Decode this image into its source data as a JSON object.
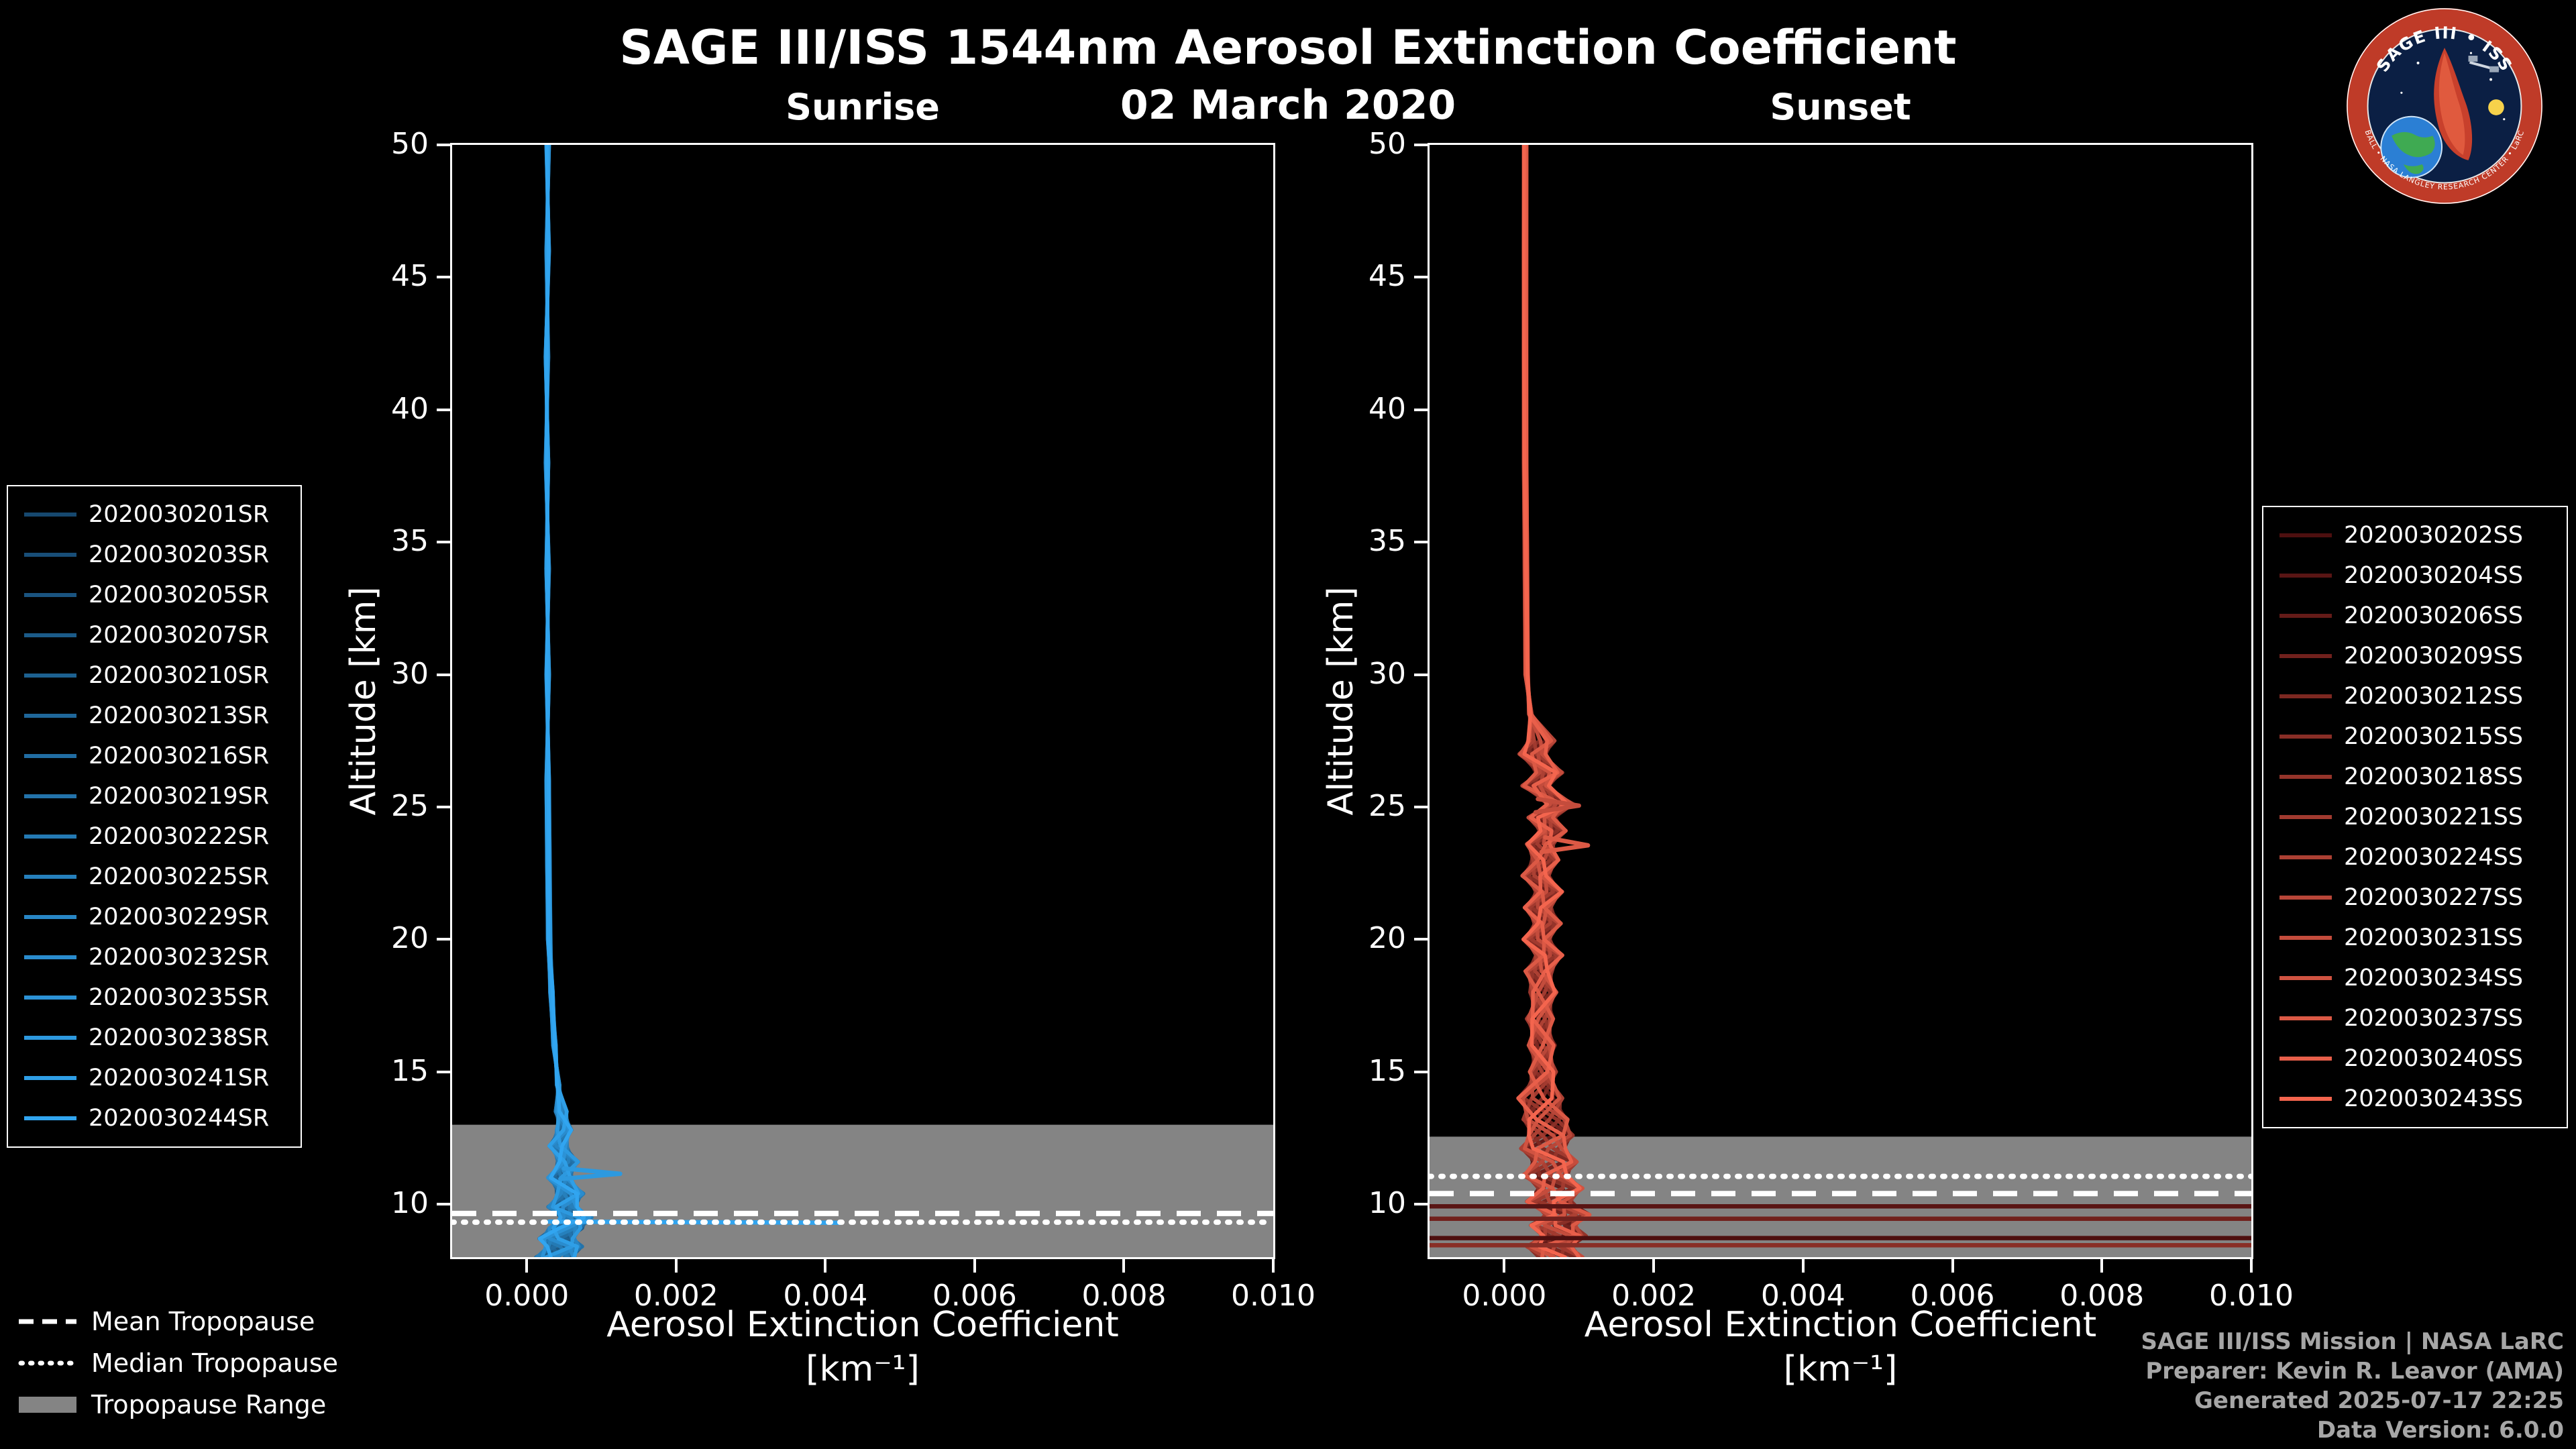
{
  "title": "SAGE III/ISS 1544nm Aerosol Extinction Coefficient",
  "subtitle": "02 March 2020",
  "tropopause_legend": {
    "mean": "Mean Tropopause",
    "median": "Median Tropopause",
    "range": "Tropopause Range"
  },
  "credits": [
    "SAGE III/ISS Mission | NASA LaRC",
    "Preparer: Kevin R. Leavor (AMA)",
    "Generated 2025-07-17 22:25",
    "Data Version: 6.0.0"
  ],
  "logo": {
    "title": "SAGE III • ISS",
    "ring_text": "BALL • NASA LANGLEY RESEARCH CENTER • LaRC"
  },
  "colors": {
    "background": "#000000",
    "text": "#ffffff",
    "credits_text": "#a6a6a6",
    "tropopause_line": "#ffffff"
  },
  "chart_data": [
    {
      "type": "line",
      "panel_title": "Sunrise",
      "xlabel_line1": "Aerosol Extinction Coefficient",
      "xlabel_line2": "[km⁻¹]",
      "ylabel": "Altitude [km]",
      "xlim": [
        -0.001,
        0.01
      ],
      "ylim": [
        8,
        50
      ],
      "xtick_values": [
        0,
        0.002,
        0.004,
        0.006,
        0.008,
        0.01
      ],
      "xtick_labels": [
        "0.000",
        "0.002",
        "0.004",
        "0.006",
        "0.008",
        "0.010"
      ],
      "ytick_values": [
        10,
        15,
        20,
        25,
        30,
        35,
        40,
        45,
        50
      ],
      "line_color_start": "#16486f",
      "line_color_end": "#31a5f0",
      "tropopause": {
        "mean_km": 9.65,
        "median_km": 9.32,
        "range_top_km": 13.0,
        "range_bottom_km": 8.0,
        "range_color": "#848484"
      },
      "series": [
        "2020030201SR",
        "2020030203SR",
        "2020030205SR",
        "2020030207SR",
        "2020030210SR",
        "2020030213SR",
        "2020030216SR",
        "2020030219SR",
        "2020030222SR",
        "2020030225SR",
        "2020030229SR",
        "2020030232SR",
        "2020030235SR",
        "2020030238SR",
        "2020030241SR",
        "2020030244SR"
      ],
      "base_profile": [
        [
          0.00028,
          50
        ],
        [
          0.00028,
          46
        ],
        [
          0.00027,
          42
        ],
        [
          0.00027,
          38
        ],
        [
          0.00028,
          34
        ],
        [
          0.00028,
          30
        ],
        [
          0.00028,
          26
        ],
        [
          0.00029,
          23
        ],
        [
          0.0003,
          20
        ],
        [
          0.00033,
          18
        ],
        [
          0.00037,
          16
        ],
        [
          0.00042,
          14.5
        ],
        [
          0.00046,
          13.5
        ],
        [
          0.0005,
          12.8
        ],
        [
          0.00042,
          12.2
        ],
        [
          0.00055,
          11.6
        ],
        [
          0.00044,
          11.0
        ],
        [
          0.00058,
          10.4
        ],
        [
          0.00048,
          9.9
        ],
        [
          0.00066,
          9.5
        ],
        [
          0.00052,
          9.1
        ],
        [
          0.0004,
          8.7
        ],
        [
          0.0005,
          8.4
        ],
        [
          0.00038,
          8.0
        ]
      ],
      "extra_segments": [
        {
          "color_index": 15,
          "points": [
            [
              0.0003,
              9.34
            ],
            [
              0.0042,
              9.3
            ]
          ]
        },
        {
          "color_index": 13,
          "points": [
            [
              0.0005,
              11.35
            ],
            [
              0.00125,
              11.15
            ],
            [
              0.00045,
              10.95
            ]
          ]
        }
      ]
    },
    {
      "type": "line",
      "panel_title": "Sunset",
      "xlabel_line1": "Aerosol Extinction Coefficient",
      "xlabel_line2": "[km⁻¹]",
      "ylabel": "Altitude [km]",
      "xlim": [
        -0.001,
        0.01
      ],
      "ylim": [
        8,
        50
      ],
      "xtick_values": [
        0,
        0.002,
        0.004,
        0.006,
        0.008,
        0.01
      ],
      "xtick_labels": [
        "0.000",
        "0.002",
        "0.004",
        "0.006",
        "0.008",
        "0.010"
      ],
      "ytick_values": [
        10,
        15,
        20,
        25,
        30,
        35,
        40,
        45,
        50
      ],
      "line_color_start": "#4d0f0f",
      "line_color_end": "#f4654e",
      "tropopause": {
        "mean_km": 10.4,
        "median_km": 11.05,
        "range_top_km": 12.55,
        "range_bottom_km": 8.0,
        "range_color": "#848484"
      },
      "series": [
        "2020030202SS",
        "2020030204SS",
        "2020030206SS",
        "2020030209SS",
        "2020030212SS",
        "2020030215SS",
        "2020030218SS",
        "2020030221SS",
        "2020030224SS",
        "2020030227SS",
        "2020030231SS",
        "2020030234SS",
        "2020030237SS",
        "2020030240SS",
        "2020030243SS"
      ],
      "base_profile": [
        [
          0.00028,
          50
        ],
        [
          0.00028,
          46
        ],
        [
          0.00028,
          42
        ],
        [
          0.00028,
          38
        ],
        [
          0.00029,
          34
        ],
        [
          0.0003,
          30
        ],
        [
          0.00035,
          28.5
        ],
        [
          0.0005,
          27.5
        ],
        [
          0.00038,
          27
        ],
        [
          0.0006,
          26.3
        ],
        [
          0.00042,
          25.8
        ],
        [
          0.00075,
          25.1
        ],
        [
          0.0005,
          24.6
        ],
        [
          0.00065,
          24.1
        ],
        [
          0.00048,
          23.6
        ],
        [
          0.00055,
          23
        ],
        [
          0.00042,
          22.4
        ],
        [
          0.0006,
          21.8
        ],
        [
          0.00045,
          21.2
        ],
        [
          0.00058,
          20.6
        ],
        [
          0.00043,
          20
        ],
        [
          0.0006,
          19.4
        ],
        [
          0.00046,
          18.8
        ],
        [
          0.00052,
          18
        ],
        [
          0.00048,
          17
        ],
        [
          0.0005,
          16
        ],
        [
          0.00052,
          15
        ],
        [
          0.00048,
          14
        ],
        [
          0.00055,
          13.2
        ],
        [
          0.00062,
          12.6
        ],
        [
          0.00052,
          12.1
        ],
        [
          0.00068,
          11.6
        ],
        [
          0.00055,
          11.1
        ],
        [
          0.00075,
          10.6
        ],
        [
          0.0006,
          10.1
        ],
        [
          0.00085,
          9.6
        ],
        [
          0.00065,
          9.2
        ],
        [
          0.0008,
          8.8
        ],
        [
          0.0006,
          8.4
        ],
        [
          0.00075,
          8.0
        ]
      ],
      "extra_segments": [
        {
          "color_index": 1,
          "points": [
            [
              -0.001,
              9.92
            ],
            [
              0.0105,
              9.92
            ]
          ]
        },
        {
          "color_index": 3,
          "points": [
            [
              -0.001,
              9.45
            ],
            [
              0.0105,
              9.45
            ]
          ]
        },
        {
          "color_index": 0,
          "points": [
            [
              -0.001,
              8.72
            ],
            [
              0.0105,
              8.72
            ]
          ]
        },
        {
          "color_index": 5,
          "points": [
            [
              -0.001,
              8.45
            ],
            [
              0.0105,
              8.45
            ]
          ]
        },
        {
          "color_index": 12,
          "points": [
            [
              0.00055,
              23.85
            ],
            [
              0.00112,
              23.55
            ],
            [
              0.0005,
              23.3
            ]
          ]
        },
        {
          "color_index": 10,
          "points": [
            [
              0.00045,
              25.3
            ],
            [
              0.001,
              25.05
            ],
            [
              0.00042,
              24.8
            ]
          ]
        }
      ]
    }
  ]
}
